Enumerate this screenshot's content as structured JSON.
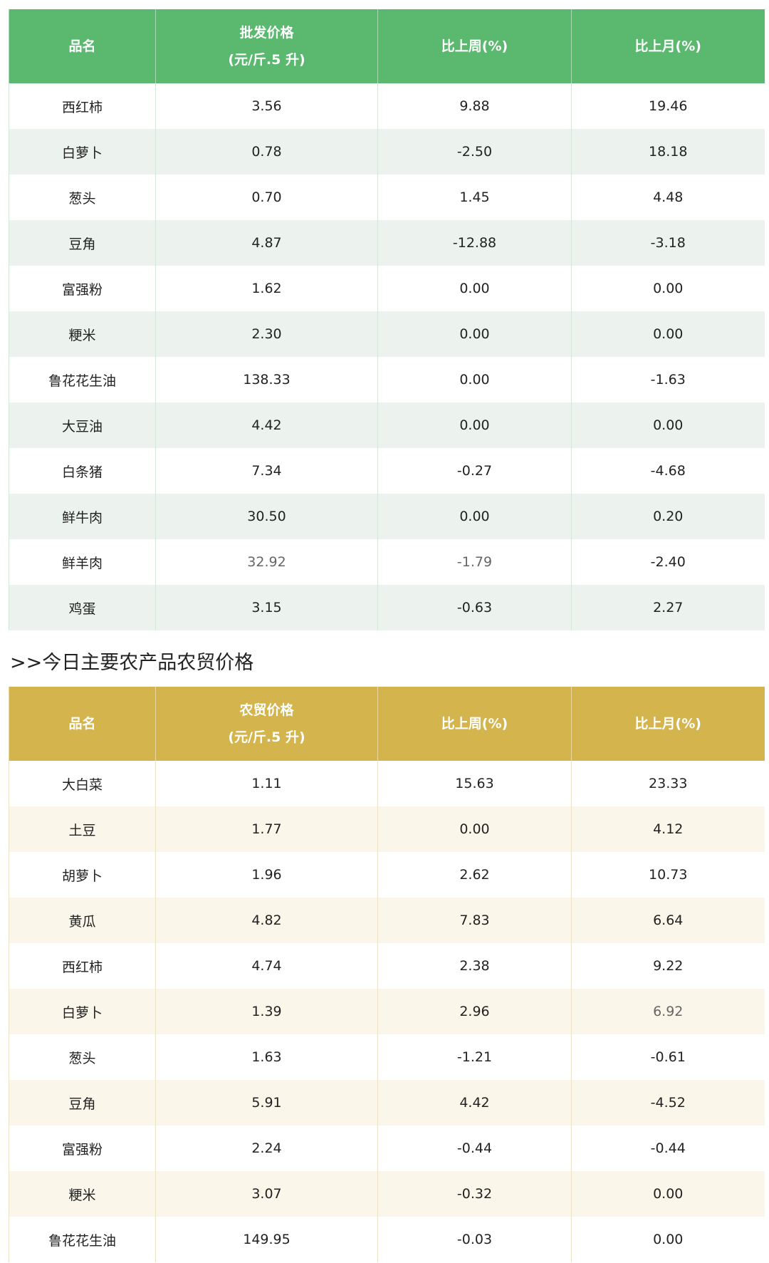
{
  "wholesale": {
    "headers": [
      "品名",
      "批发价格",
      "(元/斤.5 升)",
      "比上周(%)",
      "比上月(%)"
    ],
    "header_color": "#5ab96f",
    "rows": [
      [
        "西红柿",
        "3.56",
        "9.88",
        "19.46"
      ],
      [
        "白萝卜",
        "0.78",
        "-2.50",
        "18.18"
      ],
      [
        "葱头",
        "0.70",
        "1.45",
        "4.48"
      ],
      [
        "豆角",
        "4.87",
        "-12.88",
        "-3.18"
      ],
      [
        "富强粉",
        "1.62",
        "0.00",
        "0.00"
      ],
      [
        "粳米",
        "2.30",
        "0.00",
        "0.00"
      ],
      [
        "鲁花花生油",
        "138.33",
        "0.00",
        "-1.63"
      ],
      [
        "大豆油",
        "4.42",
        "0.00",
        "0.00"
      ],
      [
        "白条猪",
        "7.34",
        "-0.27",
        "-4.68"
      ],
      [
        "鲜牛肉",
        "30.50",
        "0.00",
        "0.20"
      ],
      [
        "鲜羊肉",
        "32.92",
        "-1.79",
        "-2.40"
      ],
      [
        "鸡蛋",
        "3.15",
        "-0.63",
        "2.27"
      ]
    ]
  },
  "section_title": ">>今日主要农产品农贸价格",
  "market": {
    "headers": [
      "品名",
      "农贸价格",
      "(元/斤.5 升)",
      "比上周(%)",
      "比上月(%)"
    ],
    "header_color": "#d4b44c",
    "rows": [
      [
        "大白菜",
        "1.11",
        "15.63",
        "23.33"
      ],
      [
        "土豆",
        "1.77",
        "0.00",
        "4.12"
      ],
      [
        "胡萝卜",
        "1.96",
        "2.62",
        "10.73"
      ],
      [
        "黄瓜",
        "4.82",
        "7.83",
        "6.64"
      ],
      [
        "西红柿",
        "4.74",
        "2.38",
        "9.22"
      ],
      [
        "白萝卜",
        "1.39",
        "2.96",
        "6.92"
      ],
      [
        "葱头",
        "1.63",
        "-1.21",
        "-0.61"
      ],
      [
        "豆角",
        "5.91",
        "4.42",
        "-4.52"
      ],
      [
        "富强粉",
        "2.24",
        "-0.44",
        "-0.44"
      ],
      [
        "粳米",
        "3.07",
        "-0.32",
        "0.00"
      ],
      [
        "鲁花花生油",
        "149.95",
        "-0.03",
        "0.00"
      ]
    ]
  }
}
